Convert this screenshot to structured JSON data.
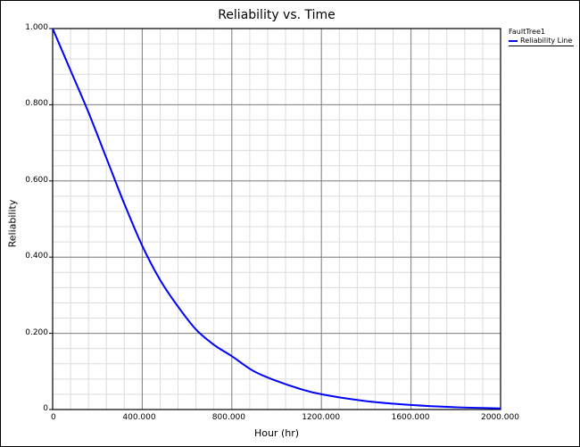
{
  "chart_data": {
    "type": "line",
    "title": "Reliability vs. Time",
    "xlabel": "Hour (hr)",
    "ylabel": "Reliability",
    "xlim": [
      0,
      2000
    ],
    "ylim": [
      0,
      1
    ],
    "x_ticks": [
      "0",
      "400.000",
      "800.000",
      "1200.000",
      "1600.000",
      "2000.000"
    ],
    "y_ticks": [
      "0",
      "0.200",
      "0.400",
      "0.600",
      "0.800",
      "1.000"
    ],
    "grid": true,
    "legend": {
      "position": "right-top",
      "group": "FaultTree1",
      "entries": [
        "Reliability Line"
      ]
    },
    "series": [
      {
        "name": "Reliability Line",
        "color": "#0000ff",
        "x": [
          0,
          80,
          160,
          240,
          320,
          400,
          480,
          560,
          640,
          720,
          800,
          900,
          1000,
          1100,
          1200,
          1400,
          1600,
          1800,
          2000
        ],
        "y": [
          1.0,
          0.89,
          0.78,
          0.66,
          0.54,
          0.43,
          0.34,
          0.27,
          0.21,
          0.17,
          0.14,
          0.1,
          0.075,
          0.055,
          0.04,
          0.022,
          0.012,
          0.006,
          0.003
        ]
      }
    ]
  }
}
